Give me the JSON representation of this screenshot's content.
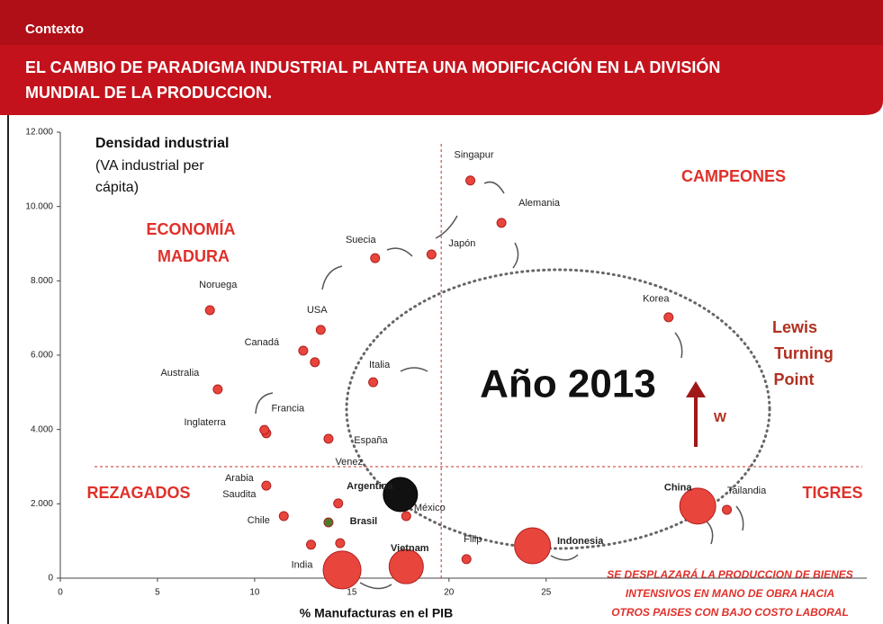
{
  "header": {
    "section": "Contexto",
    "title_lines": [
      "EL CAMBIO DE PARADIGMA INDUSTRIAL PLANTEA UNA MODIFICACIÓN EN LA DIVISIÓN",
      "MUNDIAL DE LA PRODUCCION."
    ]
  },
  "chart_data": {
    "type": "scatter",
    "y_title_lines": [
      "Densidad industrial",
      "(VA industrial per",
      "cápita)"
    ],
    "x_title": "% Manufacturas en el PIB",
    "xlim": [
      0,
      41.5
    ],
    "ylim": [
      0,
      12000
    ],
    "xticks": [
      0,
      5,
      10,
      15,
      20,
      25
    ],
    "yticks": [
      {
        "value": 0,
        "label": "0"
      },
      {
        "value": 2000,
        "label": "2.000"
      },
      {
        "value": 4000,
        "label": "4.000"
      },
      {
        "value": 6000,
        "label": "6.000"
      },
      {
        "value": 8000,
        "label": "8.000"
      },
      {
        "value": 10000,
        "label": "10.000"
      },
      {
        "value": 12000,
        "label": "12.000"
      }
    ],
    "vline": 19.6,
    "hline": 3000,
    "labels": [
      "Singapur",
      "Alemania",
      "Japón",
      "Suecia",
      "Noruega",
      "USA",
      "Canadá",
      null,
      "Italia",
      "Australia",
      "Francia",
      "Inglaterra",
      "España",
      "Venez",
      "Arabia Saudita",
      "Argentina",
      "México",
      "Brasil",
      "Chile",
      "India",
      null,
      null,
      "Vietnam",
      "Filip",
      "Indonesia",
      "China",
      "Tailandia",
      "Korea"
    ],
    "x": [
      21.1,
      22.7,
      19.1,
      16.2,
      7.7,
      13.4,
      12.5,
      13.1,
      16.1,
      8.1,
      10.6,
      10.5,
      13.8,
      14.3,
      10.6,
      17.5,
      17.8,
      13.8,
      11.5,
      12.9,
      14.4,
      14.5,
      17.8,
      20.9,
      24.3,
      32.8,
      34.3,
      31.3
    ],
    "y": [
      10700,
      9560,
      8710,
      8610,
      7210,
      6680,
      6120,
      5810,
      5270,
      5080,
      3900,
      3990,
      3750,
      2010,
      2490,
      2250,
      1670,
      1500,
      1670,
      900,
      940,
      220,
      310,
      510,
      870,
      1940,
      1840,
      7020
    ],
    "sizes": [
      5,
      5,
      5,
      5,
      5,
      5,
      5,
      5,
      5,
      5,
      5,
      5,
      5,
      5,
      5,
      19,
      5,
      5,
      5,
      5,
      5,
      21,
      19,
      5,
      20,
      20,
      5,
      5
    ],
    "colors": [
      "#e8453c",
      "#e8453c",
      "#e8453c",
      "#e8453c",
      "#e8453c",
      "#e8453c",
      "#e8453c",
      "#e8453c",
      "#e8453c",
      "#e8453c",
      "#e8453c",
      "#e8453c",
      "#e8453c",
      "#e8453c",
      "#e8453c",
      "#111111",
      "#e8453c",
      "#4a7a2a",
      "#e8453c",
      "#e8453c",
      "#e8453c",
      "#e8453c",
      "#e8453c",
      "#e8453c",
      "#e8453c",
      "#e8453c",
      "#e8453c",
      "#e8453c"
    ],
    "label_colors": [
      "#222",
      "#222",
      "#222",
      "#222",
      "#222",
      "#222",
      "#222",
      "#222",
      "#222",
      "#222",
      "#222",
      "#222",
      "#222",
      "#222",
      "#222",
      "#e0302a",
      "#222",
      "#4a7a2a",
      "#222",
      "#222",
      "#222",
      "#222",
      "#222",
      "#222",
      "#222",
      "#e0302a",
      "#222",
      "#222"
    ],
    "annotations": {
      "top_right": "CAMPEONES",
      "mature_lines": [
        "ECONOMÍA",
        "MADURA"
      ],
      "lewis_lines": [
        "Lewis",
        "Turning",
        "Point"
      ],
      "year": "Año 2013",
      "wage": "W",
      "bottom_left": "REZAGADOS",
      "bottom_right": "TIGRES",
      "note_lines": [
        "SE DESPLAZARÁ LA PRODUCCION DE BIENES",
        "INTENSIVOS EN MANO DE OBRA HACIA",
        "OTROS PAISES CON BAJO COSTO LABORAL"
      ]
    }
  }
}
